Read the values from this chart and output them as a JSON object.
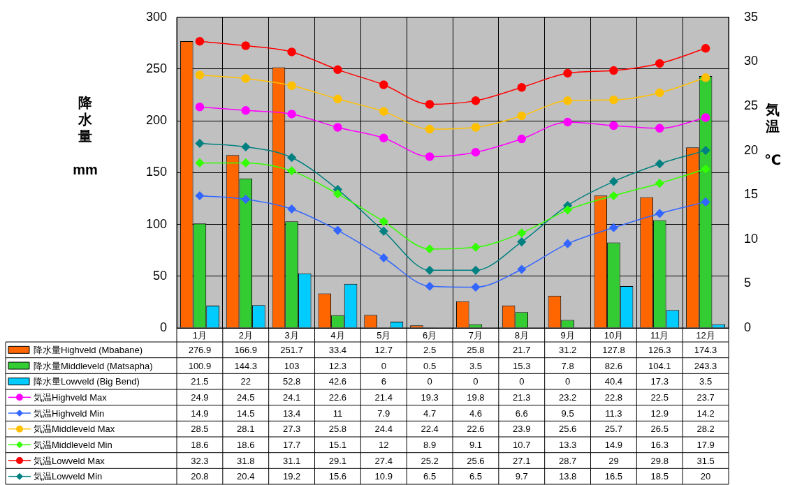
{
  "chart_data": {
    "type": "bar",
    "categories": [
      "1月",
      "2月",
      "3月",
      "4月",
      "5月",
      "6月",
      "7月",
      "8月",
      "9月",
      "10月",
      "11月",
      "12月"
    ],
    "ylabel": "降水量 mm",
    "y2label": "気温 ℃",
    "ylim": [
      0,
      300
    ],
    "yticks": [
      0,
      50,
      100,
      150,
      200,
      250,
      300
    ],
    "y2lim": [
      0,
      35
    ],
    "y2ticks": [
      0,
      5,
      10,
      15,
      20,
      25,
      30,
      35
    ],
    "grid": true,
    "legend": "bottom",
    "data_labels": true,
    "series": [
      {
        "name": "降水量Highveld (Mbabane)",
        "color": "#ff6600",
        "values": [
          276.9,
          166.9,
          251.7,
          33.4,
          12.7,
          2.5,
          25.8,
          21.7,
          31.2,
          127.8,
          126.3,
          174.3
        ]
      },
      {
        "name": "降水量Middleveld (Matsapha)",
        "color": "#33cc33",
        "values": [
          100.9,
          144.3,
          103,
          12.3,
          0,
          0.5,
          3.5,
          15.3,
          7.8,
          82.6,
          104.1,
          243.3
        ]
      },
      {
        "name": "降水量Lowveld (Big Bend)",
        "color": "#00ccff",
        "values": [
          21.5,
          22,
          52.8,
          42.6,
          6,
          0,
          0,
          0,
          0,
          40.4,
          17.3,
          3.5
        ]
      },
      {
        "name": "気温Highveld Max",
        "type": "line",
        "axis": "y2",
        "marker": "circle",
        "color": "#ff00ff",
        "values": [
          24.9,
          24.5,
          24.1,
          22.6,
          21.4,
          19.3,
          19.8,
          21.3,
          23.2,
          22.8,
          22.5,
          23.7
        ]
      },
      {
        "name": "気温Highveld Min",
        "type": "line",
        "axis": "y2",
        "marker": "diamond",
        "color": "#3366ff",
        "values": [
          14.9,
          14.5,
          13.4,
          11,
          7.9,
          4.7,
          4.6,
          6.6,
          9.5,
          11.3,
          12.9,
          14.2
        ]
      },
      {
        "name": "気温Middleveld Max",
        "type": "line",
        "axis": "y2",
        "marker": "circle",
        "color": "#ffc000",
        "values": [
          28.5,
          28.1,
          27.3,
          25.8,
          24.4,
          22.4,
          22.6,
          23.9,
          25.6,
          25.7,
          26.5,
          28.2
        ]
      },
      {
        "name": "気温Middleveld Min",
        "type": "line",
        "axis": "y2",
        "marker": "diamond",
        "color": "#33ff00",
        "values": [
          18.6,
          18.6,
          17.7,
          15.1,
          12,
          8.9,
          9.1,
          10.7,
          13.3,
          14.9,
          16.3,
          17.9
        ]
      },
      {
        "name": "気温Lowveld Max",
        "type": "line",
        "axis": "y2",
        "marker": "circle",
        "color": "#ff0000",
        "values": [
          32.3,
          31.8,
          31.1,
          29.1,
          27.4,
          25.2,
          25.6,
          27.1,
          28.7,
          29,
          29.8,
          31.5
        ]
      },
      {
        "name": "気温Lowveld Min",
        "type": "line",
        "axis": "y2",
        "marker": "diamond",
        "color": "#008080",
        "values": [
          20.8,
          20.4,
          19.2,
          15.6,
          10.9,
          6.5,
          6.5,
          9.7,
          13.8,
          16.5,
          18.5,
          20
        ]
      }
    ]
  }
}
